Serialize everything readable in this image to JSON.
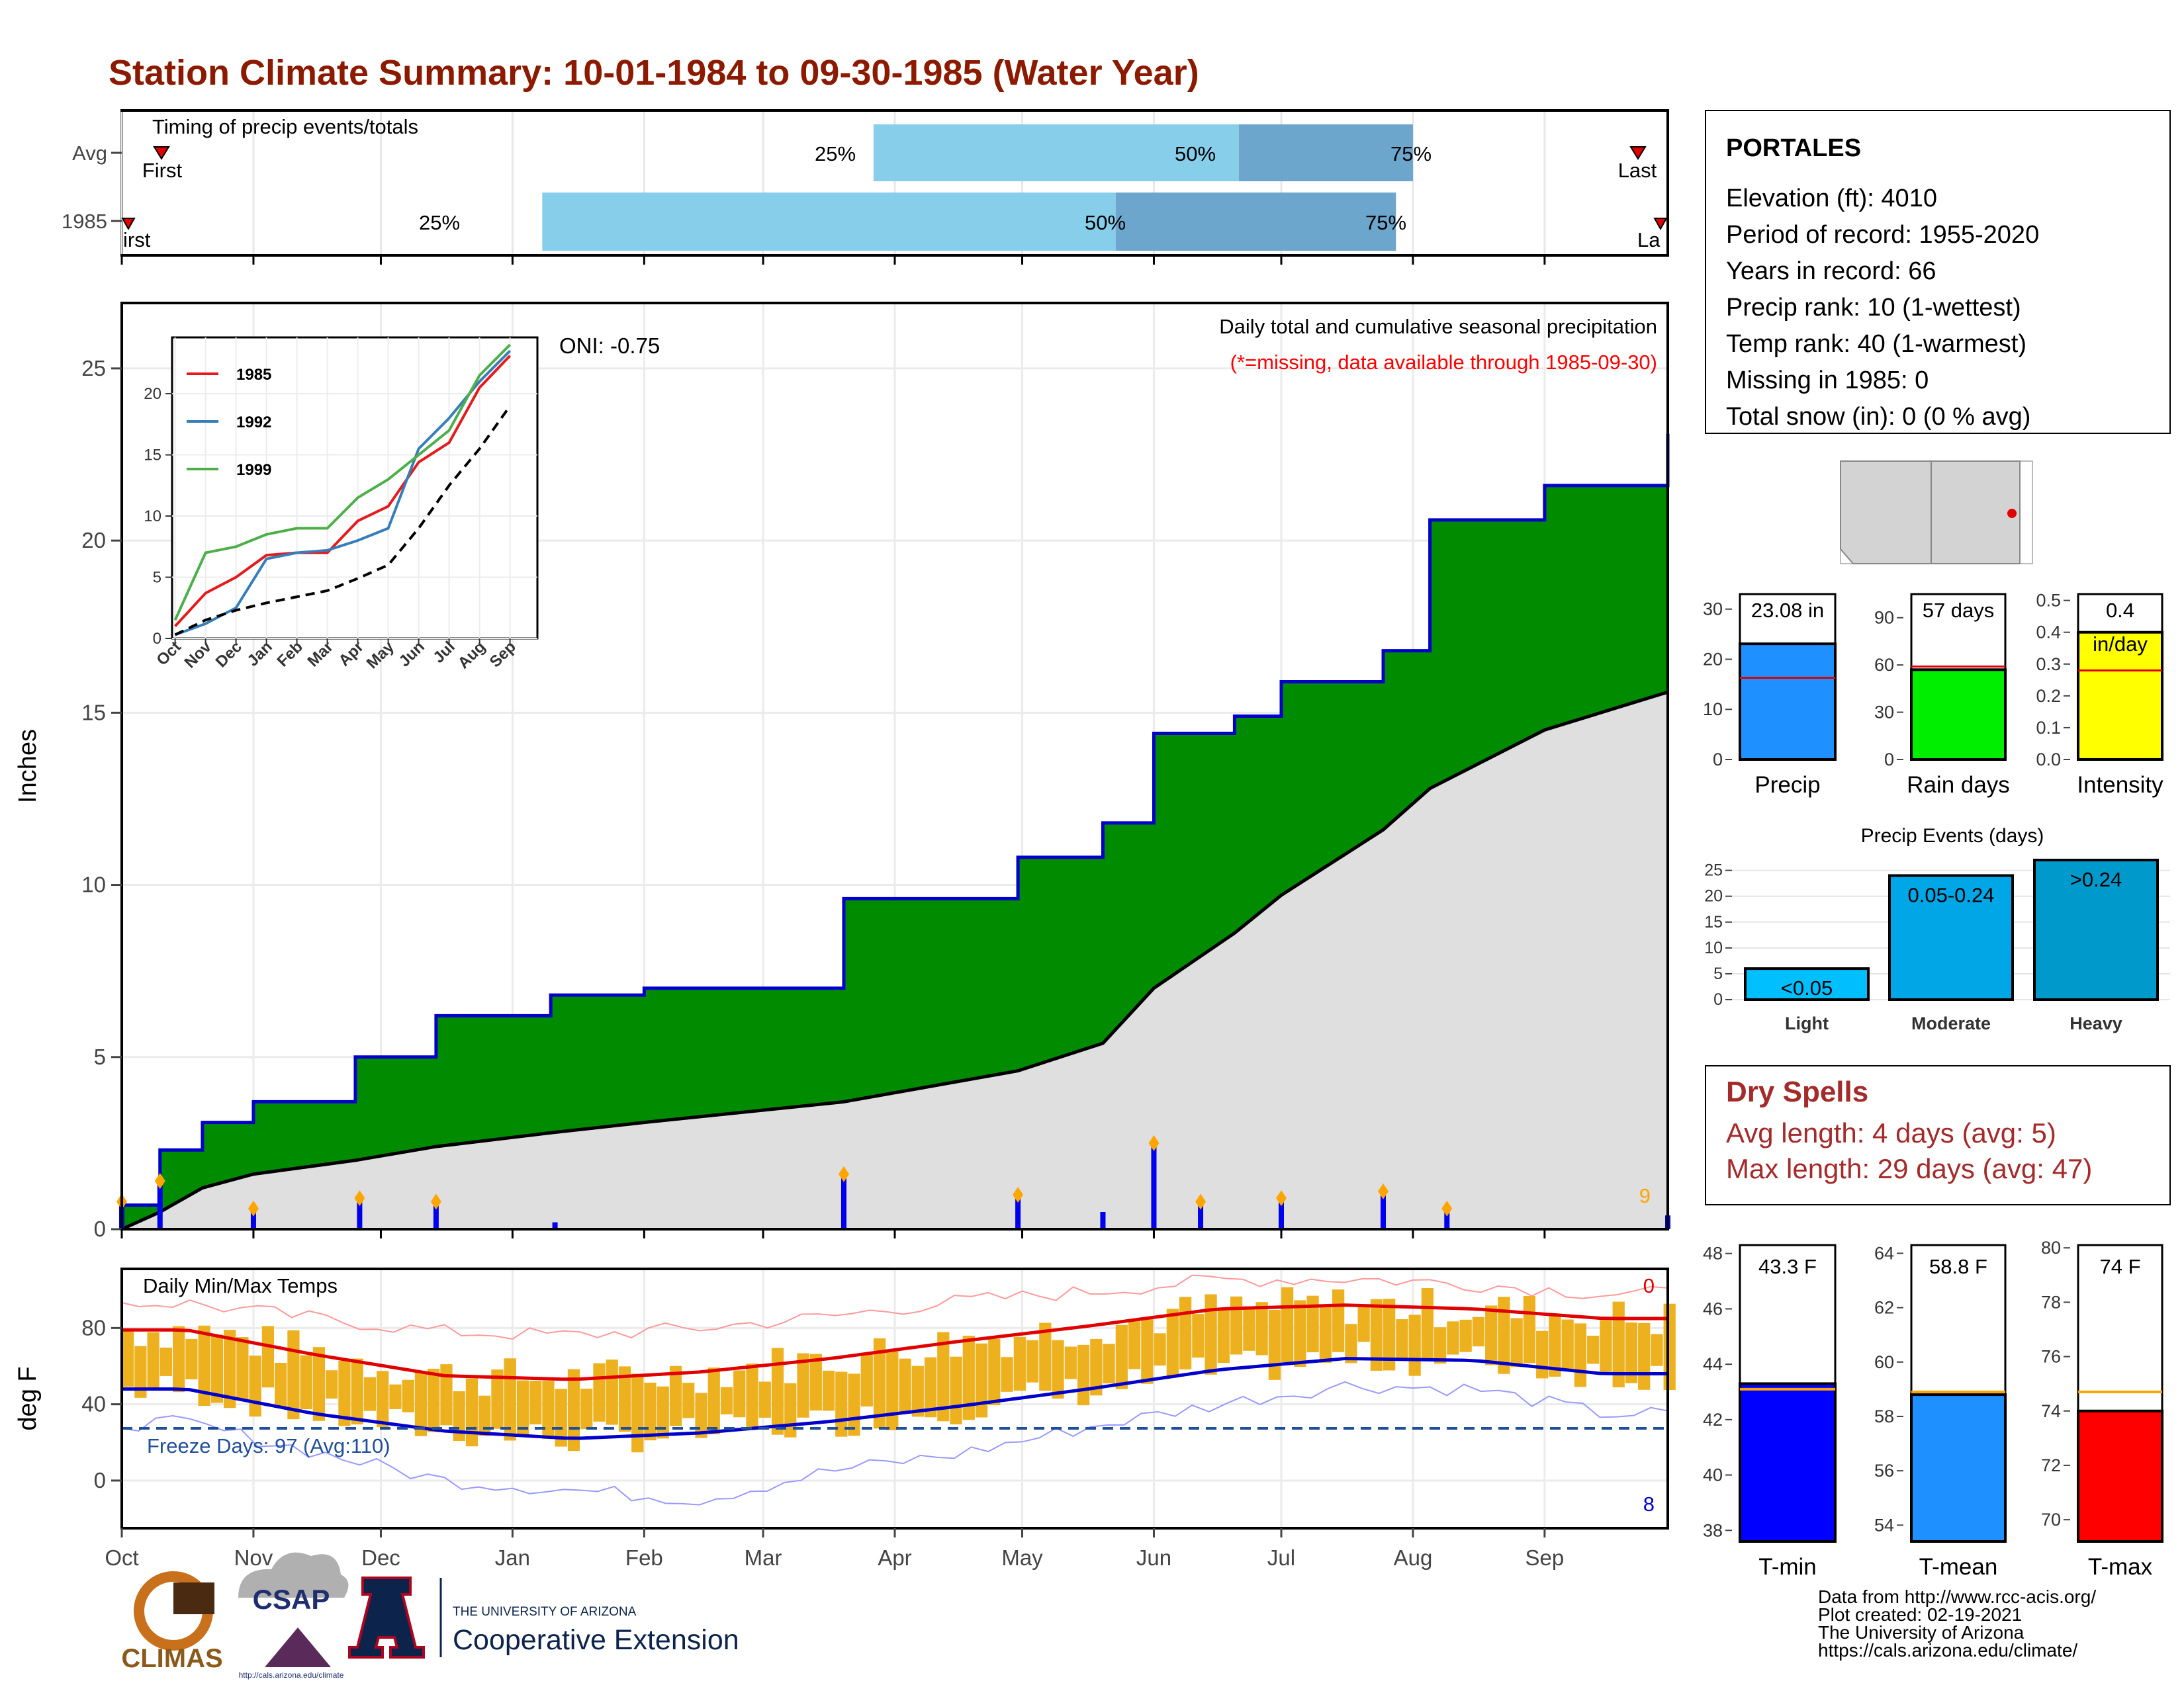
{
  "header": {
    "title": "Station Climate Summary: 10-01-1984 to 09-30-1985 (Water Year)"
  },
  "timing_panel": {
    "label": "Timing of precip events/totals",
    "rows": [
      "Avg",
      "1985"
    ],
    "first_label": "First",
    "first_label_cut": "irst",
    "last_label": "Last",
    "last_label_cut": "La",
    "pct_labels": [
      "25%",
      "50%",
      "75%"
    ]
  },
  "station": {
    "name": "PORTALES",
    "elevation": "Elevation (ft): 4010",
    "period": "Period of record: 1955-2020",
    "years": "Years in record: 66",
    "precip_rank": "Precip rank: 10 (1-wettest)",
    "temp_rank": "Temp rank: 40 (1-warmest)",
    "missing": "Missing in 1985: 0",
    "snow": "Total snow (in): 0 (0 % avg)"
  },
  "precip_panel": {
    "ylabel": "Inches",
    "oni": "ONI: -0.75",
    "label": "Daily total and cumulative seasonal precipitation",
    "missing_note": "(*=missing, data available through 1985-09-30)",
    "count_label": "9"
  },
  "inset": {
    "legend": [
      "1985",
      "1992",
      "1999"
    ],
    "colors": [
      "#e41a1c",
      "#377eb8",
      "#4daf4a"
    ],
    "months": [
      "Oct",
      "Nov",
      "Dec",
      "Jan",
      "Feb",
      "Mar",
      "Apr",
      "May",
      "Jun",
      "Jul",
      "Aug",
      "Sep"
    ],
    "yticks": [
      "0",
      "5",
      "10",
      "15",
      "20"
    ]
  },
  "temp_panel": {
    "ylabel": "deg F",
    "label": "Daily Min/Max Temps",
    "freeze": "Freeze Days: 97 (Avg:110)",
    "count_high": "0",
    "count_low": "8"
  },
  "months": [
    "Oct",
    "Nov",
    "Dec",
    "Jan",
    "Feb",
    "Mar",
    "Apr",
    "May",
    "Jun",
    "Jul",
    "Aug",
    "Sep"
  ],
  "bar_panels": {
    "precip": {
      "value_label": "23.08 in",
      "xlabel": "Precip",
      "ticks": [
        "0",
        "10",
        "20",
        "30"
      ]
    },
    "raindays": {
      "value_label": "57 days",
      "xlabel": "Rain days",
      "ticks": [
        "0",
        "30",
        "60",
        "90"
      ]
    },
    "intensity": {
      "value_label": "0.4",
      "unit_label": "in/day",
      "xlabel": "Intensity",
      "ticks": [
        "0.0",
        "0.1",
        "0.2",
        "0.3",
        "0.4",
        "0.5"
      ]
    }
  },
  "events_panel": {
    "title": "Precip Events (days)",
    "bars": [
      "<0.05",
      "0.05-0.24",
      ">0.24"
    ],
    "xlabels": [
      "Light",
      "Moderate",
      "Heavy"
    ],
    "ticks": [
      "0",
      "5",
      "10",
      "15",
      "20",
      "25"
    ]
  },
  "dry_spells": {
    "title": "Dry Spells",
    "avg": "Avg length: 4 days (avg: 5)",
    "max": "Max length: 29 days (avg: 47)"
  },
  "temp_bars": {
    "tmin": {
      "value_label": "43.3 F",
      "xlabel": "T-min",
      "ticks": [
        "38",
        "40",
        "42",
        "44",
        "46",
        "48"
      ]
    },
    "tmean": {
      "value_label": "58.8 F",
      "xlabel": "T-mean",
      "ticks": [
        "54",
        "56",
        "58",
        "60",
        "62",
        "64"
      ]
    },
    "tmax": {
      "value_label": "74 F",
      "xlabel": "T-max",
      "ticks": [
        "70",
        "72",
        "74",
        "76",
        "78",
        "80"
      ]
    }
  },
  "footer": {
    "lines": [
      "Data from http://www.rcc-acis.org/",
      "Plot created: 02-19-2021",
      "The University of Arizona",
      "https://cals.arizona.edu/climate/"
    ],
    "logo_climas": "CLIMAS",
    "logo_csap": "CSAP",
    "logo_csap_url": "http://cals.arizona.edu/climate",
    "ua_small": "THE UNIVERSITY OF ARIZONA",
    "ua_big": "Cooperative Extension"
  },
  "chart_data": [
    {
      "type": "bar",
      "title": "Timing of precip events/totals",
      "categories": [
        "Avg",
        "1985"
      ],
      "series": [
        {
          "name": "First",
          "values": [
            "1984-10-12",
            "1984-10-01"
          ]
        },
        {
          "name": "25%",
          "values": [
            "1985-03-27",
            "1985-01-08"
          ]
        },
        {
          "name": "50%",
          "values": [
            "1985-06-21",
            "1985-05-23"
          ]
        },
        {
          "name": "75%",
          "values": [
            "1985-08-01",
            "1985-07-28"
          ]
        },
        {
          "name": "Last",
          "values": [
            "1985-09-24",
            "1985-09-30"
          ]
        }
      ]
    },
    {
      "type": "area",
      "title": "Daily total and cumulative seasonal precipitation",
      "ylabel": "Inches",
      "ylim": [
        0,
        25
      ],
      "x": [
        "1984-10-01",
        "1984-10-10",
        "1984-10-20",
        "1984-11-01",
        "1984-11-25",
        "1984-12-14",
        "1985-01-10",
        "1985-02-01",
        "1985-03-20",
        "1985-04-30",
        "1985-05-20",
        "1985-06-01",
        "1985-06-20",
        "1985-07-01",
        "1985-07-25",
        "1985-08-05",
        "1985-09-01",
        "1985-09-30"
      ],
      "series": [
        {
          "name": "1985",
          "values": [
            0.7,
            2.3,
            3.1,
            3.7,
            5.0,
            6.2,
            6.8,
            7.0,
            9.6,
            10.8,
            11.8,
            14.4,
            14.9,
            15.9,
            16.8,
            20.6,
            21.6,
            23.1
          ]
        },
        {
          "name": "Avg",
          "values": [
            0.0,
            0.5,
            1.2,
            1.6,
            2.0,
            2.4,
            2.8,
            3.1,
            3.7,
            4.6,
            5.4,
            7.0,
            8.6,
            9.7,
            11.6,
            12.8,
            14.5,
            15.6
          ]
        }
      ],
      "daily_precip": {
        "x": [
          "1984-10-01",
          "1984-10-10",
          "1984-11-01",
          "1984-11-26",
          "1984-12-14",
          "1985-01-11",
          "1985-03-20",
          "1985-04-30",
          "1985-05-20",
          "1985-06-01",
          "1985-06-12",
          "1985-07-01",
          "1985-07-25",
          "1985-08-09",
          "1985-09-30"
        ],
        "values": [
          0.8,
          1.4,
          0.6,
          0.9,
          0.8,
          0.2,
          1.6,
          1.0,
          0.5,
          2.5,
          0.8,
          0.9,
          1.1,
          0.6,
          0.4
        ]
      },
      "annotation": "ONI: -0.75"
    },
    {
      "type": "line",
      "title": "Inset cumulative precipitation",
      "categories": [
        "Oct",
        "Nov",
        "Dec",
        "Jan",
        "Feb",
        "Mar",
        "Apr",
        "May",
        "Jun",
        "Jul",
        "Aug",
        "Sep"
      ],
      "ylim": [
        0,
        24
      ],
      "series": [
        {
          "name": "1985",
          "values": [
            1.0,
            3.7,
            5.0,
            6.8,
            7.0,
            7.0,
            9.6,
            10.8,
            14.4,
            16.0,
            20.5,
            23.1
          ]
        },
        {
          "name": "1992",
          "values": [
            0.3,
            1.2,
            2.5,
            6.5,
            7.0,
            7.2,
            8.0,
            9.0,
            15.5,
            18.0,
            21.0,
            23.5
          ]
        },
        {
          "name": "1999",
          "values": [
            1.5,
            7.0,
            7.5,
            8.5,
            9.0,
            9.0,
            11.5,
            13.0,
            15.0,
            17.0,
            21.5,
            24.0
          ]
        },
        {
          "name": "Avg",
          "values": [
            0.3,
            1.5,
            2.3,
            2.9,
            3.4,
            3.9,
            4.9,
            6.0,
            9.0,
            12.5,
            15.5,
            19.0
          ]
        }
      ]
    },
    {
      "type": "line",
      "title": "Daily Min/Max Temps",
      "ylabel": "deg F",
      "categories": [
        "Oct",
        "Nov",
        "Dec",
        "Jan",
        "Feb",
        "Mar",
        "Apr",
        "May",
        "Jun",
        "Jul",
        "Aug",
        "Sep"
      ],
      "series": [
        {
          "name": "Avg max",
          "values": [
            79,
            66,
            55,
            53,
            57,
            64,
            73,
            81,
            90,
            92,
            90,
            85
          ]
        },
        {
          "name": "Avg min",
          "values": [
            48,
            35,
            26,
            22,
            25,
            31,
            39,
            48,
            58,
            64,
            63,
            56
          ]
        },
        {
          "name": "Record high",
          "values": [
            93,
            85,
            78,
            76,
            80,
            86,
            94,
            99,
            105,
            106,
            103,
            98
          ]
        },
        {
          "name": "Record low",
          "values": [
            30,
            15,
            0,
            -5,
            -10,
            5,
            14,
            28,
            40,
            50,
            48,
            35
          ]
        }
      ],
      "freeze_line": 32
    },
    {
      "type": "bar",
      "categories": [
        "Precip",
        "Rain days",
        "Intensity"
      ],
      "values": [
        23.08,
        57,
        0.4
      ],
      "averages": [
        16.3,
        59,
        0.28
      ]
    },
    {
      "type": "bar",
      "title": "Precip Events (days)",
      "categories": [
        "Light",
        "Moderate",
        "Heavy"
      ],
      "values": [
        6,
        24,
        27
      ],
      "ylim": [
        0,
        27
      ]
    },
    {
      "type": "bar",
      "categories": [
        "T-min",
        "T-mean",
        "T-max"
      ],
      "values": [
        43.3,
        58.8,
        74.0
      ],
      "averages": [
        43.1,
        58.9,
        74.7
      ]
    }
  ]
}
